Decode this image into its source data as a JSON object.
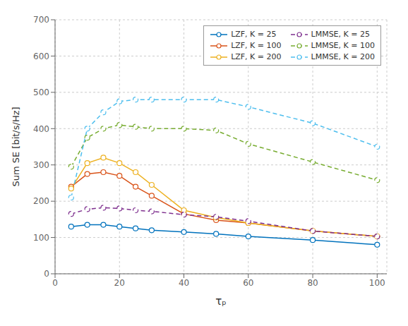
{
  "chart_data": {
    "type": "line",
    "xlabel": "τₚ",
    "ylabel": "Sum SE [bit/s/Hz]",
    "x": [
      5,
      10,
      15,
      20,
      25,
      30,
      40,
      50,
      60,
      80,
      100
    ],
    "series": [
      {
        "name": "LZF, K = 25",
        "color": "#0072BD",
        "line_style": "solid",
        "marker": "circle",
        "values": [
          130,
          135,
          135,
          130,
          125,
          120,
          115,
          110,
          103,
          93,
          80
        ]
      },
      {
        "name": "LZF, K = 100",
        "color": "#D95319",
        "line_style": "solid",
        "marker": "circle",
        "values": [
          240,
          275,
          280,
          270,
          240,
          215,
          165,
          148,
          140,
          118,
          103
        ]
      },
      {
        "name": "LZF, K = 200",
        "color": "#EDB120",
        "line_style": "solid",
        "marker": "circle",
        "values": [
          235,
          305,
          320,
          305,
          280,
          245,
          175,
          155,
          140,
          118,
          103
        ]
      },
      {
        "name": "LMMSE, K = 25",
        "color": "#7E2F8E",
        "line_style": "dashed",
        "marker": "circle",
        "values": [
          165,
          178,
          182,
          180,
          175,
          172,
          163,
          157,
          145,
          118,
          103
        ]
      },
      {
        "name": "LMMSE, K = 100",
        "color": "#77AC30",
        "line_style": "dashed",
        "marker": "circle",
        "values": [
          295,
          375,
          400,
          410,
          405,
          400,
          400,
          395,
          358,
          308,
          258
        ]
      },
      {
        "name": "LMMSE, K = 200",
        "color": "#4DBEEE",
        "line_style": "dashed",
        "marker": "circle",
        "values": [
          210,
          400,
          445,
          475,
          480,
          480,
          480,
          480,
          460,
          415,
          350
        ]
      }
    ],
    "xlim": [
      0,
      103
    ],
    "ylim": [
      0,
      700
    ],
    "xticks": [
      0,
      20,
      40,
      60,
      80,
      100
    ],
    "yticks": [
      0,
      100,
      200,
      300,
      400,
      500,
      600,
      700
    ],
    "grid": true,
    "legend": "upper right"
  }
}
